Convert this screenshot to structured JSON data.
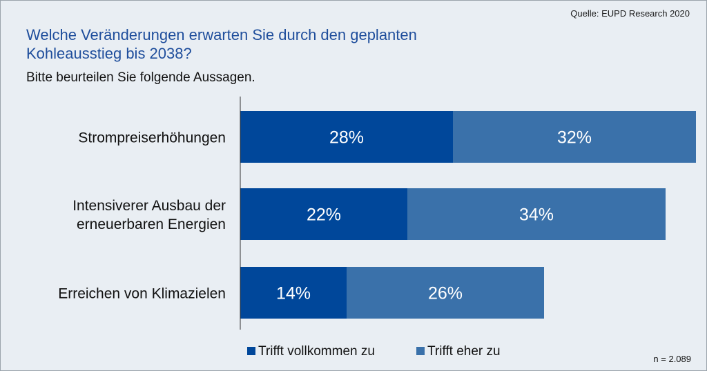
{
  "source": "Quelle: EUPD Research 2020",
  "title": "Welche Veränderungen erwarten Sie durch den geplanten Kohleausstieg bis 2038?",
  "subtitle": "Bitte beurteilen Sie folgende Aussagen.",
  "sample_size": "n = 2.089",
  "colors": {
    "series1": "#00479a",
    "series2": "#3a71aa",
    "axis": "#333333"
  },
  "chart_data": {
    "type": "bar",
    "orientation": "horizontal",
    "stacked": true,
    "categories": [
      [
        "Strompreiserhöhungen"
      ],
      [
        "Intensiverer Ausbau der",
        "erneuerbaren Energien"
      ],
      [
        "Erreichen von Klimazielen"
      ]
    ],
    "series": [
      {
        "name": "Trifft vollkommen zu",
        "values": [
          28,
          22,
          14
        ],
        "labels": [
          "28%",
          "22%",
          "14%"
        ]
      },
      {
        "name": "Trifft eher zu",
        "values": [
          32,
          34,
          26
        ],
        "labels": [
          "32%",
          "34%",
          "26%"
        ]
      }
    ],
    "xlim": [
      0,
      60
    ],
    "legend_position": "bottom"
  }
}
